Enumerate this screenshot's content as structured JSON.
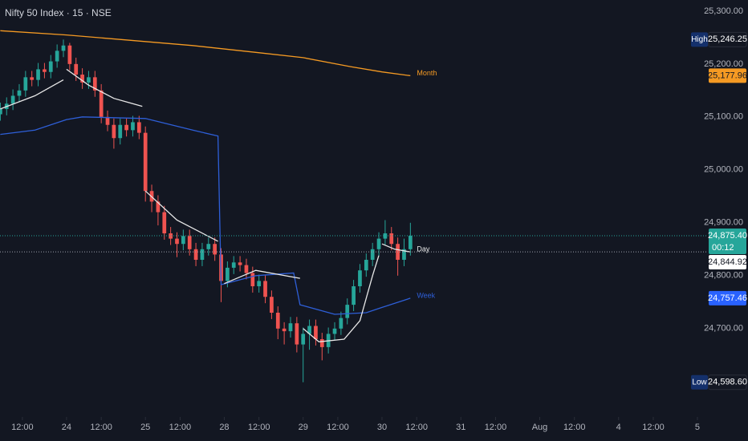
{
  "chart_data": {
    "type": "candlestick",
    "title": "Nifty 50 Index · 15 · NSE",
    "up_color": "#26a69a",
    "down_color": "#ef5350",
    "xlim": [
      -21.1,
      202.8
    ],
    "ylim": [
      24533,
      25321
    ],
    "xticks": [
      {
        "value": -14,
        "label": "12:00"
      },
      {
        "value": 0,
        "label": "24"
      },
      {
        "value": 11,
        "label": "12:00"
      },
      {
        "value": 25,
        "label": "25"
      },
      {
        "value": 36,
        "label": "12:00"
      },
      {
        "value": 50,
        "label": "28"
      },
      {
        "value": 61,
        "label": "12:00"
      },
      {
        "value": 75,
        "label": "29"
      },
      {
        "value": 86,
        "label": "12:00"
      },
      {
        "value": 100,
        "label": "30"
      },
      {
        "value": 111,
        "label": "12:00"
      },
      {
        "value": 125,
        "label": "31"
      },
      {
        "value": 136,
        "label": "12:00"
      },
      {
        "value": 150,
        "label": "Aug"
      },
      {
        "value": 161,
        "label": "12:00"
      },
      {
        "value": 175,
        "label": "4"
      },
      {
        "value": 186,
        "label": "12:00"
      },
      {
        "value": 200,
        "label": "5"
      }
    ],
    "yticks": [
      {
        "value": 25300,
        "label": "25,300.00"
      },
      {
        "value": 25200,
        "label": "25,200.00"
      },
      {
        "value": 25100,
        "label": "25,100.00"
      },
      {
        "value": 25000,
        "label": "25,000.00"
      },
      {
        "value": 24900,
        "label": "24,900.00"
      },
      {
        "value": 24800,
        "label": "24,800.00"
      },
      {
        "value": 24700,
        "label": "24,700.00"
      }
    ],
    "x": [
      -21,
      -19,
      -17,
      -15,
      -13,
      -11,
      -9,
      -7,
      -5,
      -3,
      -1,
      1,
      3,
      5,
      7,
      9,
      11,
      13,
      15,
      17,
      19,
      21,
      23,
      25,
      27,
      29,
      31,
      33,
      35,
      37,
      39,
      41,
      43,
      45,
      47,
      49,
      51,
      53,
      55,
      57,
      59,
      61,
      63,
      65,
      67,
      69,
      71,
      73,
      75,
      77,
      79,
      81,
      83,
      85,
      87,
      89,
      91,
      93,
      95,
      97,
      99,
      101,
      103,
      105,
      107,
      109
    ],
    "open": [
      25105,
      25115,
      25125,
      25140,
      25150,
      25175,
      25170,
      25190,
      25185,
      25205,
      25225,
      25235,
      25200,
      25180,
      25165,
      25175,
      25150,
      25100,
      25085,
      25060,
      25085,
      25075,
      25090,
      25070,
      24960,
      24940,
      24920,
      24880,
      24870,
      24860,
      24875,
      24850,
      24830,
      24850,
      24860,
      24840,
      24790,
      24815,
      24825,
      24820,
      24805,
      24780,
      24790,
      24760,
      24730,
      24700,
      24695,
      24710,
      24670,
      24690,
      24705,
      24680,
      24665,
      24690,
      24700,
      24720,
      24745,
      24780,
      24810,
      24830,
      24850,
      24870,
      24880,
      24860,
      24830,
      24850
    ],
    "high": [
      25127,
      25137,
      25152,
      25162,
      25187,
      25187,
      25202,
      25202,
      25217,
      25237,
      25246.25,
      25240,
      25212,
      25192,
      25187,
      25187,
      25162,
      25112,
      25097,
      25097,
      25097,
      25102,
      25102,
      25082,
      24972,
      24952,
      24932,
      24892,
      24882,
      24887,
      24887,
      24862,
      24862,
      24872,
      24872,
      24852,
      24827,
      24837,
      24837,
      24832,
      24817,
      24802,
      24802,
      24772,
      24742,
      24712,
      24722,
      24722,
      24702,
      24717,
      24717,
      24692,
      24702,
      24712,
      24732,
      24757,
      24792,
      24822,
      24842,
      24862,
      24882,
      24905,
      24892,
      24872,
      24870,
      24900
    ],
    "low": [
      25093,
      25103,
      25113,
      25128,
      25138,
      25158,
      25158,
      25173,
      25173,
      25193,
      25213,
      25188,
      25168,
      25153,
      25153,
      25138,
      25088,
      25073,
      25040,
      25048,
      25063,
      25063,
      25058,
      24940,
      24920,
      24895,
      24868,
      24858,
      24835,
      24848,
      24838,
      24818,
      24818,
      24838,
      24828,
      24750,
      24778,
      24803,
      24808,
      24793,
      24768,
      24768,
      24748,
      24718,
      24680,
      24670,
      24683,
      24655,
      24598.6,
      24660,
      24668,
      24640,
      24653,
      24678,
      24688,
      24708,
      24733,
      24768,
      24798,
      24818,
      24838,
      24858,
      24848,
      24800,
      24818,
      24838
    ],
    "close": [
      25115,
      25125,
      25140,
      25150,
      25175,
      25170,
      25190,
      25185,
      25205,
      25225,
      25235,
      25200,
      25180,
      25165,
      25175,
      25150,
      25100,
      25085,
      25060,
      25085,
      25075,
      25090,
      25070,
      24960,
      24940,
      24920,
      24880,
      24870,
      24860,
      24875,
      24850,
      24830,
      24850,
      24860,
      24840,
      24790,
      24815,
      24825,
      24820,
      24805,
      24780,
      24790,
      24760,
      24730,
      24700,
      24695,
      24710,
      24670,
      24690,
      24705,
      24680,
      24665,
      24690,
      24700,
      24720,
      24745,
      24780,
      24810,
      24830,
      24850,
      24870,
      24880,
      24860,
      24830,
      24850,
      24875.4
    ],
    "series": [
      {
        "name": "Month",
        "color": "#f59a23",
        "x": [
          -21,
          0,
          20,
          40,
          60,
          75,
          90,
          100,
          109
        ],
        "values": [
          25263,
          25255,
          25245,
          25235,
          25222,
          25212,
          25195,
          25185,
          25177.96
        ]
      },
      {
        "name": "Week",
        "color": "#2e5fd8",
        "x": [
          -21,
          -10,
          0,
          5,
          25,
          40,
          48,
          49,
          60,
          72,
          74,
          85,
          95,
          100,
          109
        ],
        "values": [
          25067,
          25075,
          25095,
          25100,
          25097,
          25075,
          25064,
          24783,
          24800,
          24805,
          24745,
          24727,
          24730,
          24740,
          24757.46
        ]
      },
      {
        "name": "Day",
        "color": "#e8e8e8",
        "x": [
          -21,
          -10,
          -1,
          null,
          0,
          7,
          15,
          24,
          null,
          25,
          35,
          48,
          null,
          50,
          60,
          74,
          null,
          75,
          80,
          88,
          93,
          97,
          99,
          null,
          100,
          104,
          109
        ],
        "values": [
          25115,
          25140,
          25170,
          null,
          25190,
          25160,
          25135,
          25120,
          null,
          24960,
          24905,
          24865,
          null,
          24785,
          24810,
          24795,
          null,
          24700,
          24675,
          24680,
          24715,
          24800,
          24838,
          null,
          24860,
          24850,
          24844.92
        ]
      }
    ],
    "price_badges": {
      "names": [
        "High",
        null,
        null,
        null,
        null,
        "Low"
      ],
      "values": [
        25246.25,
        25177.96,
        24875.4,
        24844.92,
        24757.46,
        24598.6
      ],
      "value_labels": [
        "25,246.25",
        "25,177.96",
        "24,875.40",
        "24,844.92",
        "24,757.46",
        "24,598.60"
      ],
      "colors": [
        "#131722",
        "#f59a23",
        "#26a69a",
        "#ffffff",
        "#2962ff",
        "#131722"
      ],
      "text_colors": [
        "#ffffff",
        "#131722",
        "#ffffff",
        "#131722",
        "#ffffff",
        "#ffffff"
      ],
      "price_line": [
        false,
        false,
        true,
        true,
        false,
        false
      ]
    },
    "countdown": "00:12"
  }
}
